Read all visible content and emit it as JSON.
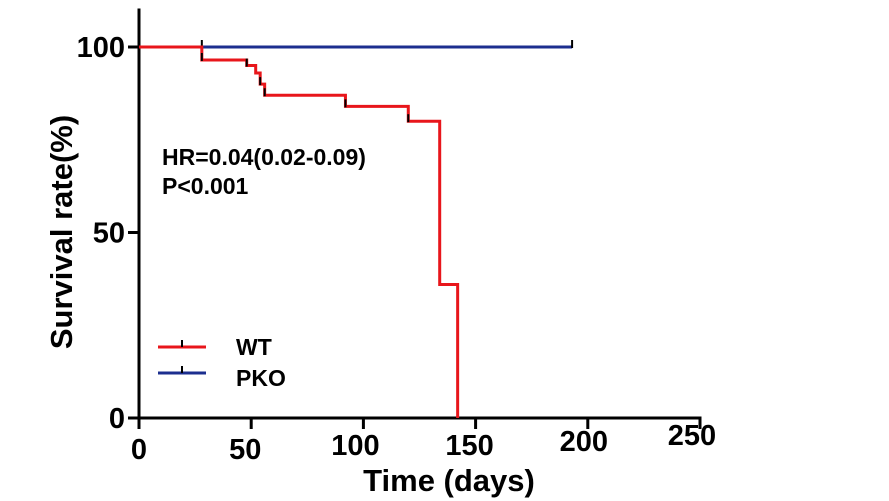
{
  "chart_data": {
    "type": "line",
    "title": "",
    "xlabel": "Time (days)",
    "ylabel": "Survival rate(%)",
    "xlim": [
      0,
      250
    ],
    "ylim": [
      0,
      105
    ],
    "x_ticks": [
      "0",
      "50",
      "100",
      "150",
      "200",
      "250"
    ],
    "y_ticks": [
      "0",
      "50",
      "100"
    ],
    "x_tick_values": [
      0,
      50,
      100,
      150,
      200,
      250
    ],
    "y_tick_values": [
      0,
      50,
      100
    ],
    "grid": false,
    "legend_position": "bottom-left",
    "annotations": [
      "HR=0.04(0.02-0.09)",
      "P<0.001"
    ],
    "series": [
      {
        "name": "WT",
        "color": "#e8161b",
        "step": true,
        "x": [
          0,
          28,
          48,
          52,
          54,
          56,
          92,
          120,
          134,
          135,
          142
        ],
        "y": [
          100,
          96.5,
          95,
          93,
          90,
          87,
          84,
          80,
          36,
          36,
          0
        ],
        "censored": [
          [
            28,
            96.5
          ],
          [
            48,
            95
          ],
          [
            54,
            90
          ],
          [
            56,
            87
          ],
          [
            92,
            84
          ],
          [
            120,
            80
          ]
        ]
      },
      {
        "name": "PKO",
        "color": "#1c2f8f",
        "step": true,
        "x": [
          0,
          193
        ],
        "y": [
          100,
          100
        ],
        "censored": [
          [
            28,
            100
          ],
          [
            193,
            100
          ]
        ]
      }
    ]
  }
}
